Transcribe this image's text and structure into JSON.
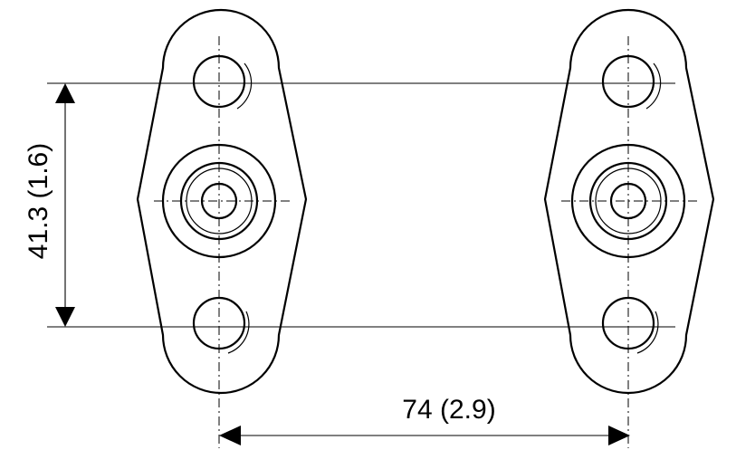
{
  "dimensions": {
    "vertical": "41.3 (1.6)",
    "horizontal": "74 (2.9)"
  }
}
